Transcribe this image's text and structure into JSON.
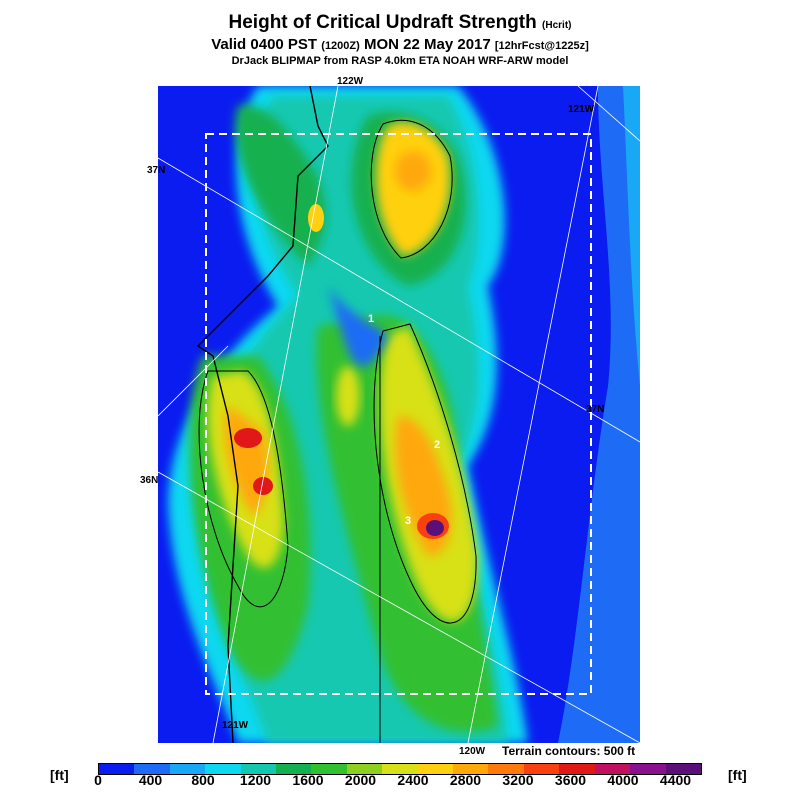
{
  "header": {
    "title_main": "Height of Critical Updraft Strength",
    "title_param": "(Hcrit)",
    "valid_a": "Valid 0400 PST",
    "valid_utc": "(1200Z)",
    "valid_b": "MON 22 May 2017",
    "forecast": "[12hrFcst@1225z]",
    "source": "DrJack BLIPMAP from RASP 4.0km ETA NOAH WRF-ARW model"
  },
  "map": {
    "grid_labels": [
      "122W",
      "121W",
      "37N",
      "37N",
      "36N",
      "121W",
      "120W"
    ],
    "site_labels": [
      "1",
      "2",
      "3"
    ],
    "terrain_note": "Terrain contours: 500 ft"
  },
  "legend": {
    "unit_left": "[ft]",
    "unit_right": "[ft]",
    "ticks": [
      "0",
      "400",
      "800",
      "1200",
      "1600",
      "2000",
      "2400",
      "2800",
      "3200",
      "3600",
      "4000",
      "4400"
    ],
    "colors": [
      "#0a1cf0",
      "#1e6cf5",
      "#18a8f5",
      "#0ed8f0",
      "#14c8b0",
      "#12b050",
      "#30c030",
      "#8ed020",
      "#d8e018",
      "#ffd010",
      "#ffa80a",
      "#ff7a0a",
      "#f84010",
      "#e01818",
      "#c01060",
      "#8a1090",
      "#5a1078"
    ]
  }
}
